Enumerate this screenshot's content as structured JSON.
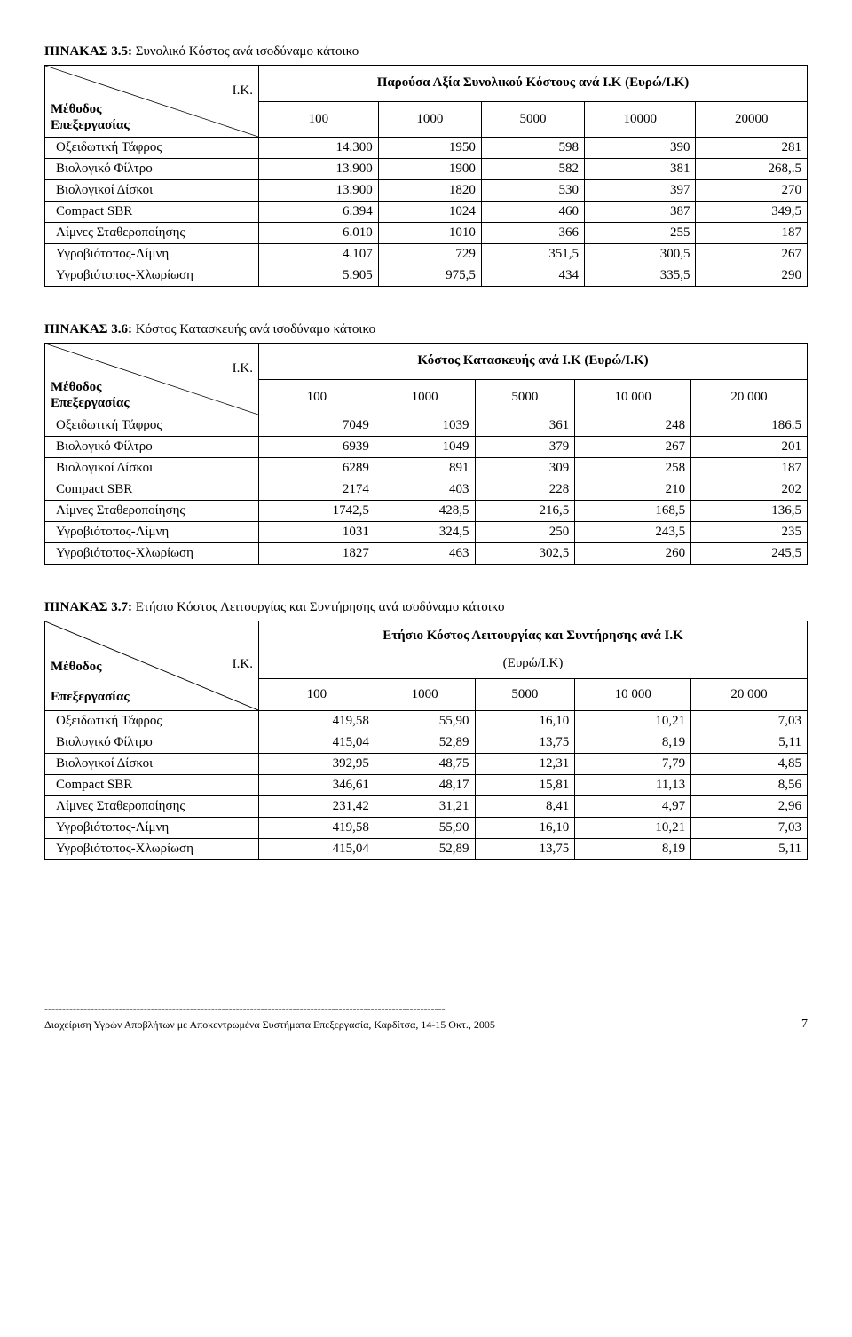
{
  "table1": {
    "caption_bold": "ΠΙΝΑΚΑΣ 3.5:",
    "caption_rest": " Συνολικό Κόστος ανά ισοδύναμο κάτοικο",
    "header_title": "Παρούσα Αξία Συνολικού Κόστους ανά Ι.Κ (Ευρώ/Ι.Κ)",
    "diag_top": "Ι.Κ.",
    "diag_bot1": "Μέθοδος",
    "diag_bot2": "Επεξεργασίας",
    "col_headers": [
      "100",
      "1000",
      "5000",
      "10000",
      "20000"
    ],
    "rows": [
      {
        "label": "Οξειδωτική Τάφρος",
        "v": [
          "14.300",
          "1950",
          "598",
          "390",
          "281"
        ]
      },
      {
        "label": "Βιολογικό Φίλτρο",
        "v": [
          "13.900",
          "1900",
          "582",
          "381",
          "268,.5"
        ]
      },
      {
        "label": "Βιολογικοί Δίσκοι",
        "v": [
          "13.900",
          "1820",
          "530",
          "397",
          "270"
        ]
      },
      {
        "label": "Compact SBR",
        "v": [
          "6.394",
          "1024",
          "460",
          "387",
          "349,5"
        ]
      },
      {
        "label": "Λίμνες Σταθεροποίησης",
        "v": [
          "6.010",
          "1010",
          "366",
          "255",
          "187"
        ]
      },
      {
        "label": "Υγροβιότοπος-Λίμνη",
        "v": [
          "4.107",
          "729",
          "351,5",
          "300,5",
          "267"
        ]
      },
      {
        "label": "Υγροβιότοπος-Χλωρίωση",
        "v": [
          "5.905",
          "975,5",
          "434",
          "335,5",
          "290"
        ]
      }
    ]
  },
  "table2": {
    "caption_bold": "ΠΙΝΑΚΑΣ 3.6:",
    "caption_rest": " Κόστος Κατασκευής ανά ισοδύναμο κάτοικο",
    "header_title": "Κόστος Κατασκευής ανά Ι.Κ (Ευρώ/Ι.Κ)",
    "diag_top": "Ι.Κ.",
    "diag_bot1": "Μέθοδος",
    "diag_bot2": "Επεξεργασίας",
    "col_headers": [
      "100",
      "1000",
      "5000",
      "10 000",
      "20 000"
    ],
    "rows": [
      {
        "label": "Οξειδωτική Τάφρος",
        "v": [
          "7049",
          "1039",
          "361",
          "248",
          "186.5"
        ]
      },
      {
        "label": "Βιολογικό Φίλτρο",
        "v": [
          "6939",
          "1049",
          "379",
          "267",
          "201"
        ]
      },
      {
        "label": "Βιολογικοί Δίσκοι",
        "v": [
          "6289",
          "891",
          "309",
          "258",
          "187"
        ]
      },
      {
        "label": "Compact SBR",
        "v": [
          "2174",
          "403",
          "228",
          "210",
          "202"
        ]
      },
      {
        "label": "Λίμνες Σταθεροποίησης",
        "v": [
          "1742,5",
          "428,5",
          "216,5",
          "168,5",
          "136,5"
        ]
      },
      {
        "label": "Υγροβιότοπος-Λίμνη",
        "v": [
          "1031",
          "324,5",
          "250",
          "243,5",
          "235"
        ]
      },
      {
        "label": "Υγροβιότοπος-Χλωρίωση",
        "v": [
          "1827",
          "463",
          "302,5",
          "260",
          "245,5"
        ]
      }
    ]
  },
  "table3": {
    "caption_bold": "ΠΙΝΑΚΑΣ 3.7:",
    "caption_rest": " Ετήσιο Κόστος Λειτουργίας και Συντήρησης ανά ισοδύναμο κάτοικο",
    "header_title1": "Ετήσιο Κόστος Λειτουργίας και Συντήρησης ανά Ι.Κ",
    "header_title2": "(Ευρώ/Ι.Κ)",
    "diag_top": "Ι.Κ.",
    "diag_bot1": "Μέθοδος",
    "diag_bot2": "Επεξεργασίας",
    "col_headers": [
      "100",
      "1000",
      "5000",
      "10 000",
      "20 000"
    ],
    "rows": [
      {
        "label": "Οξειδωτική Τάφρος",
        "v": [
          "419,58",
          "55,90",
          "16,10",
          "10,21",
          "7,03"
        ]
      },
      {
        "label": "Βιολογικό Φίλτρο",
        "v": [
          "415,04",
          "52,89",
          "13,75",
          "8,19",
          "5,11"
        ]
      },
      {
        "label": "Βιολογικοί Δίσκοι",
        "v": [
          "392,95",
          "48,75",
          "12,31",
          "7,79",
          "4,85"
        ]
      },
      {
        "label": "Compact SBR",
        "v": [
          "346,61",
          "48,17",
          "15,81",
          "11,13",
          "8,56"
        ]
      },
      {
        "label": "Λίμνες Σταθεροποίησης",
        "v": [
          "231,42",
          "31,21",
          "8,41",
          "4,97",
          "2,96"
        ]
      },
      {
        "label": "Υγροβιότοπος-Λίμνη",
        "v": [
          "419,58",
          "55,90",
          "16,10",
          "10,21",
          "7,03"
        ]
      },
      {
        "label": "Υγροβιότοπος-Χλωρίωση",
        "v": [
          "415,04",
          "52,89",
          "13,75",
          "8,19",
          "5,11"
        ]
      }
    ]
  },
  "footer": {
    "dashes": "-----------------------------------------------------------------------------------------------------------------",
    "text": "Διαχείριση Υγρών Αποβλήτων με Αποκεντρωμένα Συστήματα Επεξεργασία, Καρδίτσα, 14-15 Οκτ., 2005",
    "page": "7"
  }
}
